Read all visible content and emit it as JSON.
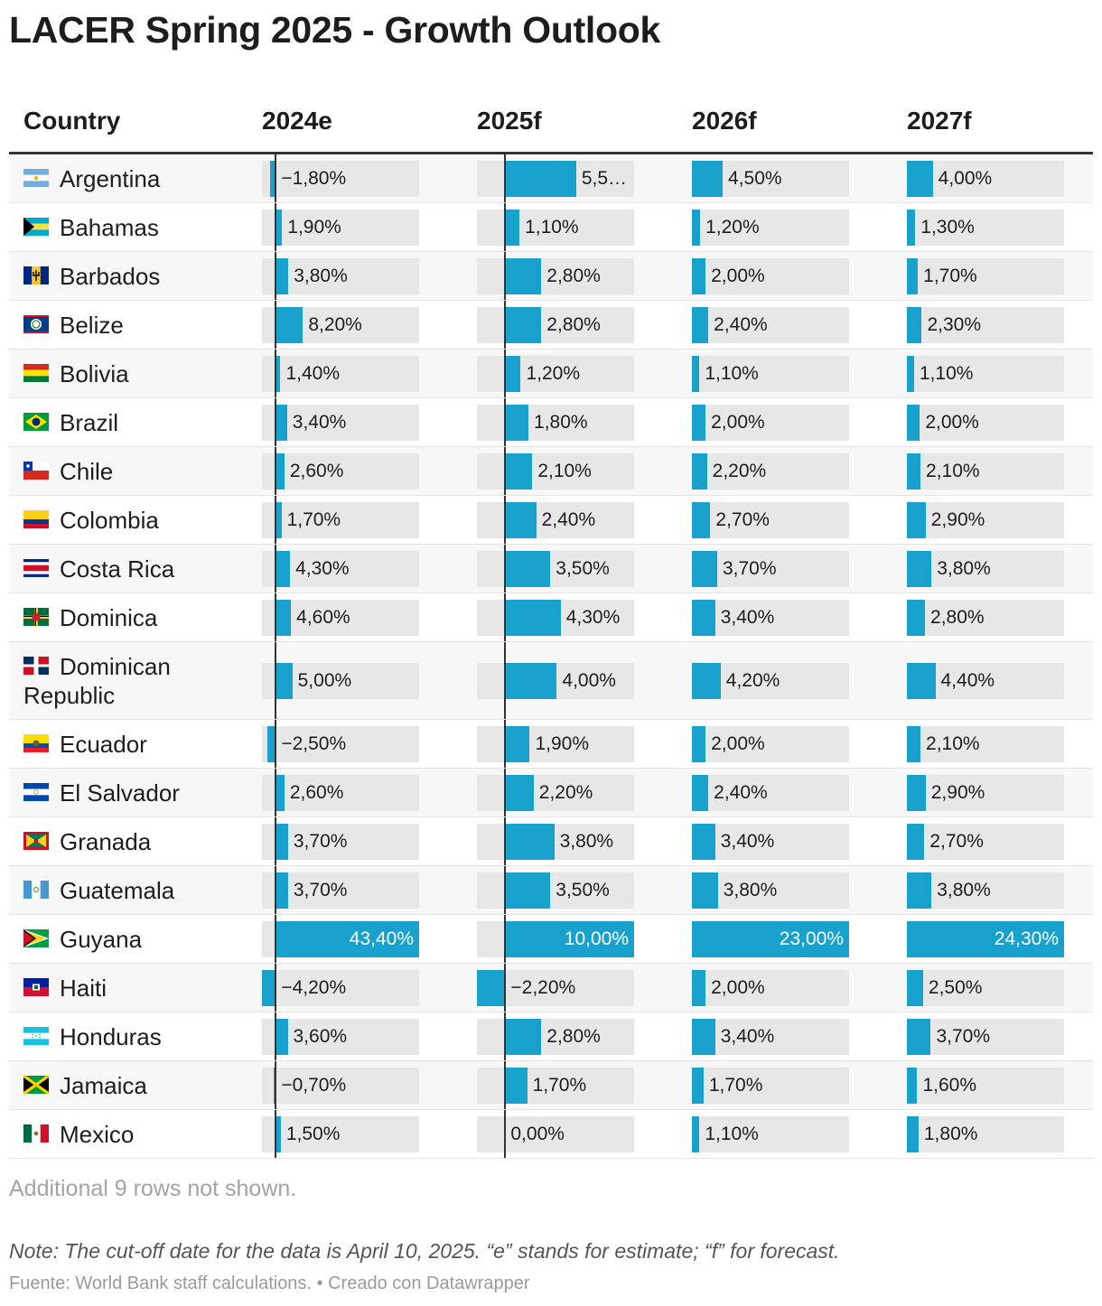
{
  "title": "LACER Spring 2025 - Growth Outlook",
  "columns": [
    "Country",
    "2024e",
    "2025f",
    "2026f",
    "2027f"
  ],
  "more_rows": "Additional 9 rows not shown.",
  "note": "Note: The cut-off date for the data is April 10, 2025. “e” stands for estimate; “f” for forecast.",
  "source": "Fuente: World Bank staff calculations. • Creado con Datawrapper",
  "colors": {
    "bar": "#19a1cd",
    "track": "#e7e7e7",
    "zero_line": "#333333"
  },
  "chart_data": {
    "type": "table",
    "series": [
      {
        "name": "2024e",
        "axis_min": -4.2,
        "axis_max": 43.4
      },
      {
        "name": "2025f",
        "axis_min": -2.2,
        "axis_max": 10.0
      },
      {
        "name": "2026f",
        "axis_min": 0,
        "axis_max": 23.0
      },
      {
        "name": "2027f",
        "axis_min": 0,
        "axis_max": 24.3
      }
    ],
    "rows": [
      {
        "country": "Argentina",
        "flag": "argentina-flag-icon",
        "values": [
          -1.8,
          5.5,
          4.5,
          4.0
        ],
        "labels": [
          "−1,80%",
          "5,5…",
          "4,50%",
          "4,00%"
        ]
      },
      {
        "country": "Bahamas",
        "flag": "bahamas-flag-icon",
        "values": [
          1.9,
          1.1,
          1.2,
          1.3
        ],
        "labels": [
          "1,90%",
          "1,10%",
          "1,20%",
          "1,30%"
        ]
      },
      {
        "country": "Barbados",
        "flag": "barbados-flag-icon",
        "values": [
          3.8,
          2.8,
          2.0,
          1.7
        ],
        "labels": [
          "3,80%",
          "2,80%",
          "2,00%",
          "1,70%"
        ]
      },
      {
        "country": "Belize",
        "flag": "belize-flag-icon",
        "values": [
          8.2,
          2.8,
          2.4,
          2.3
        ],
        "labels": [
          "8,20%",
          "2,80%",
          "2,40%",
          "2,30%"
        ]
      },
      {
        "country": "Bolivia",
        "flag": "bolivia-flag-icon",
        "values": [
          1.4,
          1.2,
          1.1,
          1.1
        ],
        "labels": [
          "1,40%",
          "1,20%",
          "1,10%",
          "1,10%"
        ]
      },
      {
        "country": "Brazil",
        "flag": "brazil-flag-icon",
        "values": [
          3.4,
          1.8,
          2.0,
          2.0
        ],
        "labels": [
          "3,40%",
          "1,80%",
          "2,00%",
          "2,00%"
        ]
      },
      {
        "country": "Chile",
        "flag": "chile-flag-icon",
        "values": [
          2.6,
          2.1,
          2.2,
          2.1
        ],
        "labels": [
          "2,60%",
          "2,10%",
          "2,20%",
          "2,10%"
        ]
      },
      {
        "country": "Colombia",
        "flag": "colombia-flag-icon",
        "values": [
          1.7,
          2.4,
          2.7,
          2.9
        ],
        "labels": [
          "1,70%",
          "2,40%",
          "2,70%",
          "2,90%"
        ]
      },
      {
        "country": "Costa Rica",
        "flag": "costa-rica-flag-icon",
        "values": [
          4.3,
          3.5,
          3.7,
          3.8
        ],
        "labels": [
          "4,30%",
          "3,50%",
          "3,70%",
          "3,80%"
        ]
      },
      {
        "country": "Dominica",
        "flag": "dominica-flag-icon",
        "values": [
          4.6,
          4.3,
          3.4,
          2.8
        ],
        "labels": [
          "4,60%",
          "4,30%",
          "3,40%",
          "2,80%"
        ]
      },
      {
        "country": "Dominican Republic",
        "flag": "dominican-republic-flag-icon",
        "values": [
          5.0,
          4.0,
          4.2,
          4.4
        ],
        "labels": [
          "5,00%",
          "4,00%",
          "4,20%",
          "4,40%"
        ]
      },
      {
        "country": "Ecuador",
        "flag": "ecuador-flag-icon",
        "values": [
          -2.5,
          1.9,
          2.0,
          2.1
        ],
        "labels": [
          "−2,50%",
          "1,90%",
          "2,00%",
          "2,10%"
        ]
      },
      {
        "country": "El Salvador",
        "flag": "el-salvador-flag-icon",
        "values": [
          2.6,
          2.2,
          2.4,
          2.9
        ],
        "labels": [
          "2,60%",
          "2,20%",
          "2,40%",
          "2,90%"
        ]
      },
      {
        "country": "Granada",
        "flag": "grenada-flag-icon",
        "values": [
          3.7,
          3.8,
          3.4,
          2.7
        ],
        "labels": [
          "3,70%",
          "3,80%",
          "3,40%",
          "2,70%"
        ]
      },
      {
        "country": "Guatemala",
        "flag": "guatemala-flag-icon",
        "values": [
          3.7,
          3.5,
          3.8,
          3.8
        ],
        "labels": [
          "3,70%",
          "3,50%",
          "3,80%",
          "3,80%"
        ]
      },
      {
        "country": "Guyana",
        "flag": "guyana-flag-icon",
        "values": [
          43.4,
          10.0,
          23.0,
          24.3
        ],
        "labels": [
          "43,40%",
          "10,00%",
          "23,00%",
          "24,30%"
        ]
      },
      {
        "country": "Haiti",
        "flag": "haiti-flag-icon",
        "values": [
          -4.2,
          -2.2,
          2.0,
          2.5
        ],
        "labels": [
          "−4,20%",
          "−2,20%",
          "2,00%",
          "2,50%"
        ]
      },
      {
        "country": "Honduras",
        "flag": "honduras-flag-icon",
        "values": [
          3.6,
          2.8,
          3.4,
          3.7
        ],
        "labels": [
          "3,60%",
          "2,80%",
          "3,40%",
          "3,70%"
        ]
      },
      {
        "country": "Jamaica",
        "flag": "jamaica-flag-icon",
        "values": [
          -0.7,
          1.7,
          1.7,
          1.6
        ],
        "labels": [
          "−0,70%",
          "1,70%",
          "1,70%",
          "1,60%"
        ]
      },
      {
        "country": "Mexico",
        "flag": "mexico-flag-icon",
        "values": [
          1.5,
          0.0,
          1.1,
          1.8
        ],
        "labels": [
          "1,50%",
          "0,00%",
          "1,10%",
          "1,80%"
        ]
      }
    ]
  }
}
